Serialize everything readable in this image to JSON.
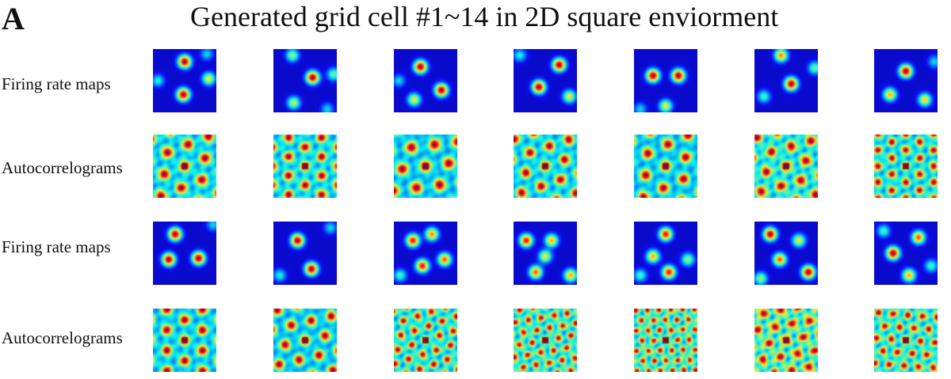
{
  "figure": {
    "panel_letter": "A",
    "title": "Generated grid cell #1~14 in 2D square enviorment"
  },
  "rows": [
    {
      "label": "Firing rate maps",
      "kind": "rate",
      "cells": [
        {
          "p": [
            [
              0.5,
              0.2,
              1
            ],
            [
              0.48,
              0.72,
              1
            ],
            [
              0.88,
              0.47,
              0.6
            ],
            [
              0.08,
              0.5,
              0.35
            ],
            [
              0.85,
              0.08,
              0.3
            ]
          ]
        },
        {
          "p": [
            [
              0.62,
              0.45,
              1
            ],
            [
              0.3,
              0.1,
              0.5
            ],
            [
              0.95,
              0.4,
              0.45
            ],
            [
              0.32,
              0.85,
              0.55
            ],
            [
              0.85,
              0.95,
              0.3
            ]
          ]
        },
        {
          "p": [
            [
              0.42,
              0.28,
              1
            ],
            [
              0.75,
              0.65,
              1
            ],
            [
              0.32,
              0.8,
              0.6
            ],
            [
              0.08,
              0.5,
              0.3
            ]
          ]
        },
        {
          "p": [
            [
              0.4,
              0.6,
              1
            ],
            [
              0.72,
              0.25,
              1
            ],
            [
              0.88,
              0.75,
              0.6
            ],
            [
              0.1,
              0.1,
              0.35
            ]
          ]
        },
        {
          "p": [
            [
              0.3,
              0.42,
              1
            ],
            [
              0.7,
              0.42,
              1
            ],
            [
              0.5,
              0.9,
              0.6
            ],
            [
              0.1,
              0.95,
              0.3
            ]
          ]
        },
        {
          "p": [
            [
              0.58,
              0.55,
              1
            ],
            [
              0.42,
              0.1,
              0.75
            ],
            [
              0.95,
              0.3,
              0.45
            ],
            [
              0.15,
              0.75,
              0.4
            ]
          ]
        },
        {
          "p": [
            [
              0.5,
              0.35,
              1
            ],
            [
              0.25,
              0.72,
              0.7
            ],
            [
              0.8,
              0.8,
              0.65
            ],
            [
              0.95,
              0.2,
              0.3
            ]
          ]
        }
      ]
    },
    {
      "label": "Autocorrelograms",
      "kind": "auto",
      "cells": [
        {
          "s": 0.3,
          "a": 0.15,
          "d": 0.4
        },
        {
          "s": 0.26,
          "a": 0.0,
          "d": 0.45
        },
        {
          "s": 0.32,
          "a": 0.4,
          "d": 0.3
        },
        {
          "s": 0.28,
          "a": 0.2,
          "d": 0.4
        },
        {
          "s": 0.3,
          "a": 0.1,
          "d": 0.3
        },
        {
          "s": 0.28,
          "a": 0.25,
          "d": 0.6
        },
        {
          "s": 0.22,
          "a": 0.0,
          "d": 0.5
        }
      ]
    },
    {
      "label": "Firing rate maps",
      "kind": "rate",
      "cells": [
        {
          "p": [
            [
              0.35,
              0.2,
              1
            ],
            [
              0.25,
              0.6,
              1
            ],
            [
              0.72,
              0.58,
              1
            ],
            [
              0.95,
              0.05,
              0.3
            ]
          ]
        },
        {
          "p": [
            [
              0.38,
              0.3,
              1
            ],
            [
              0.6,
              0.75,
              1
            ],
            [
              0.1,
              0.85,
              0.35
            ],
            [
              0.9,
              0.1,
              0.3
            ]
          ]
        },
        {
          "p": [
            [
              0.3,
              0.3,
              0.9
            ],
            [
              0.6,
              0.2,
              0.75
            ],
            [
              0.45,
              0.7,
              0.9
            ],
            [
              0.8,
              0.6,
              0.8
            ],
            [
              0.1,
              0.85,
              0.4
            ]
          ]
        },
        {
          "p": [
            [
              0.2,
              0.3,
              0.9
            ],
            [
              0.6,
              0.3,
              0.7
            ],
            [
              0.5,
              0.55,
              0.6
            ],
            [
              0.35,
              0.8,
              0.8
            ],
            [
              0.9,
              0.85,
              0.7
            ]
          ]
        },
        {
          "p": [
            [
              0.5,
              0.2,
              0.9
            ],
            [
              0.3,
              0.55,
              0.7
            ],
            [
              0.55,
              0.8,
              0.9
            ],
            [
              0.85,
              0.6,
              0.5
            ],
            [
              0.1,
              0.85,
              0.4
            ]
          ]
        },
        {
          "p": [
            [
              0.25,
              0.2,
              1
            ],
            [
              0.7,
              0.3,
              0.6
            ],
            [
              0.4,
              0.6,
              0.8
            ],
            [
              0.85,
              0.8,
              1
            ],
            [
              0.1,
              0.9,
              0.5
            ]
          ]
        },
        {
          "p": [
            [
              0.3,
              0.5,
              1
            ],
            [
              0.7,
              0.25,
              0.8
            ],
            [
              0.55,
              0.85,
              0.7
            ],
            [
              0.15,
              0.15,
              0.4
            ],
            [
              0.9,
              0.7,
              0.4
            ]
          ]
        }
      ]
    },
    {
      "label": "Autocorrelograms",
      "kind": "auto",
      "cells": [
        {
          "s": 0.28,
          "a": 0.0,
          "d": 0.35
        },
        {
          "s": 0.28,
          "a": 0.3,
          "d": 0.3
        },
        {
          "s": 0.2,
          "a": 0.2,
          "d": 0.6
        },
        {
          "s": 0.18,
          "a": 0.35,
          "d": 0.7
        },
        {
          "s": 0.16,
          "a": 0.5,
          "d": 0.8
        },
        {
          "s": 0.24,
          "a": 0.35,
          "d": 0.9
        },
        {
          "s": 0.2,
          "a": 0.6,
          "d": 0.7
        }
      ]
    }
  ],
  "colors": {
    "jet_dark_blue": "#1a2580",
    "jet_blue": "#1f5fd0",
    "jet_cyan": "#6fdcef",
    "jet_yellow": "#f4ec3a",
    "jet_orange": "#f48a1f",
    "jet_red": "#c81a12"
  }
}
